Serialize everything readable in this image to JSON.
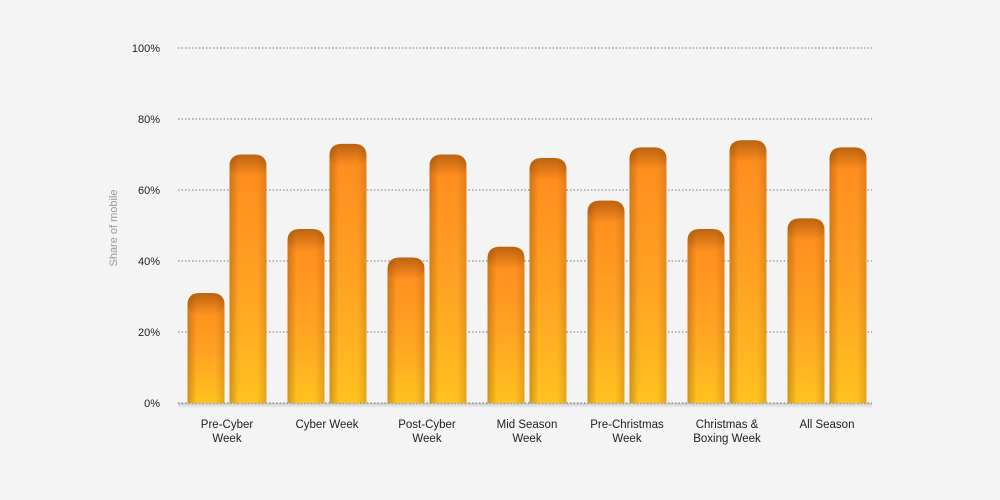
{
  "chart_data": {
    "type": "bar",
    "title": "",
    "xlabel": "",
    "ylabel": "Share of mobile",
    "ylim": [
      0,
      100
    ],
    "y_ticks": [
      "0%",
      "20%",
      "40%",
      "60%",
      "80%",
      "100%"
    ],
    "y_tick_values": [
      0,
      20,
      40,
      60,
      80,
      100
    ],
    "grid": true,
    "legend": "none",
    "categories": [
      [
        "Pre-Cyber",
        "Week"
      ],
      [
        "Cyber Week"
      ],
      [
        "Post-Cyber",
        "Week"
      ],
      [
        "Mid Season",
        "Week"
      ],
      [
        "Pre-Christmas",
        "Week"
      ],
      [
        "Christmas &",
        "Boxing Week"
      ],
      [
        "All Season"
      ]
    ],
    "series": [
      {
        "values": [
          31,
          49,
          41,
          44,
          57,
          49,
          52
        ],
        "color": "#f29a1f"
      },
      {
        "values": [
          70,
          73,
          70,
          69,
          72,
          74,
          72
        ],
        "color": "#f7a51f"
      }
    ],
    "colors": {
      "bar_top": "#ff8d20",
      "bar_bottom": "#ffc020",
      "bar_edge": "#b8671a",
      "background": "#f4f4f4"
    }
  }
}
